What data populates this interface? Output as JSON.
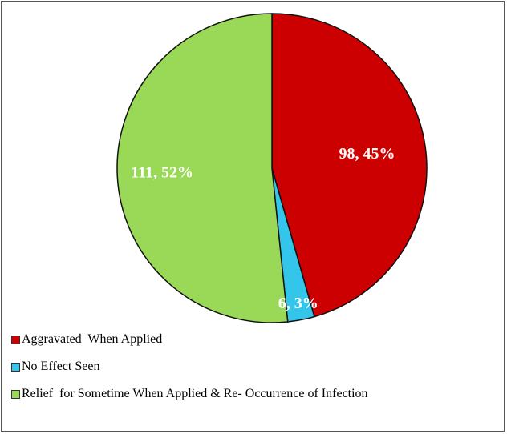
{
  "chart_data": {
    "type": "pie",
    "categories": [
      "Aggravated  When Applied",
      "No Effect Seen",
      "Relief  for Sometime When Applied & Re- Occurrence of Infection"
    ],
    "values": [
      98,
      6,
      111
    ],
    "value_labels": [
      "98, 45%",
      "6, 3%",
      "111, 52%"
    ],
    "colors": [
      "#cc0000",
      "#33c6ea",
      "#9ad858"
    ],
    "legend": "bottom"
  }
}
